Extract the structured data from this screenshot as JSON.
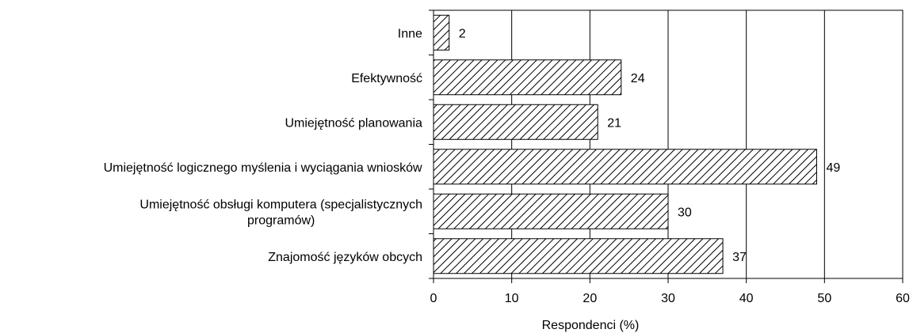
{
  "chart_data": {
    "type": "bar",
    "orientation": "horizontal",
    "title": "",
    "xlabel": "Respondenci (%)",
    "ylabel": "",
    "xlim": [
      0,
      60
    ],
    "xticks": [
      0,
      10,
      20,
      30,
      40,
      50,
      60
    ],
    "grid": "vertical gridlines at major ticks",
    "legend": "none",
    "bar_fill": "diagonal hatch",
    "colors": {
      "bar_stroke": "#000000",
      "hatch": "#000000",
      "background": "#ffffff",
      "grid": "#000000"
    },
    "categories": [
      [
        "Inne"
      ],
      [
        "Efektywność"
      ],
      [
        "Umiejętność planowania"
      ],
      [
        "Umiejętność logicznego myślenia i wyciągania wniosków"
      ],
      [
        "Umiejętność obsługi komputera (specjalistycznych",
        "programów)"
      ],
      [
        "Znajomość języków obcych"
      ]
    ],
    "values": [
      2,
      24,
      21,
      49,
      30,
      37
    ]
  }
}
